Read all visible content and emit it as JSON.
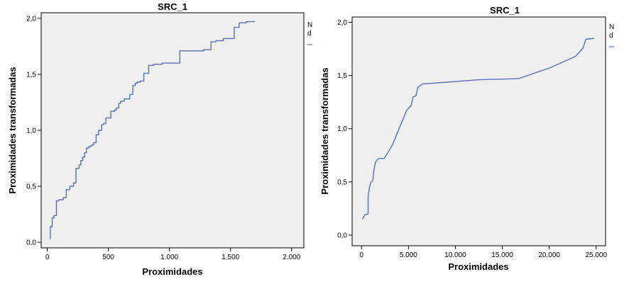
{
  "chart_data": [
    {
      "type": "line",
      "title": "SRC_1",
      "xlabel": "Proximidades",
      "ylabel": "Proximidades transformadas",
      "xlim": [
        -50,
        2100
      ],
      "ylim": [
        -0.05,
        2.05
      ],
      "xticks": [
        0,
        500,
        1000,
        1500,
        2000
      ],
      "xtick_labels": [
        "0",
        "500",
        "1.000",
        "1.500",
        "2.000"
      ],
      "yticks": [
        0.0,
        0.5,
        1.0,
        1.5,
        2.0
      ],
      "ytick_labels": [
        "0,0",
        "0,5",
        "1,0",
        "1,5",
        "2,0"
      ],
      "legend_fragment": [
        "N",
        "d"
      ],
      "line_color": "#5b6fb5",
      "background": "#efefef",
      "series": [
        {
          "x": [
            25,
            25,
            40,
            40,
            55,
            55,
            75,
            75,
            95,
            95,
            130,
            130,
            155,
            155,
            185,
            185,
            215,
            215,
            235,
            235,
            260,
            260,
            275,
            275,
            290,
            290,
            305,
            305,
            320,
            320,
            335,
            335,
            350,
            350,
            365,
            365,
            380,
            380,
            400,
            400,
            420,
            420,
            445,
            445,
            460,
            460,
            480,
            480,
            520,
            520,
            550,
            550,
            565,
            565,
            585,
            585,
            600,
            600,
            630,
            630,
            675,
            675,
            700,
            700,
            720,
            720,
            735,
            735,
            760,
            760,
            790,
            790,
            830,
            830,
            870,
            870,
            940,
            940,
            1085,
            1085,
            1280,
            1280,
            1340,
            1340,
            1380,
            1380,
            1440,
            1440,
            1530,
            1530,
            1570,
            1570,
            1630,
            1630,
            1700
          ],
          "y": [
            0.03,
            0.14,
            0.14,
            0.22,
            0.22,
            0.24,
            0.24,
            0.37,
            0.37,
            0.38,
            0.38,
            0.4,
            0.4,
            0.47,
            0.47,
            0.5,
            0.5,
            0.53,
            0.53,
            0.66,
            0.66,
            0.69,
            0.69,
            0.73,
            0.73,
            0.76,
            0.76,
            0.8,
            0.8,
            0.84,
            0.84,
            0.85,
            0.85,
            0.86,
            0.86,
            0.87,
            0.87,
            0.89,
            0.89,
            0.96,
            0.96,
            1.0,
            1.0,
            1.05,
            1.05,
            1.06,
            1.06,
            1.11,
            1.11,
            1.17,
            1.17,
            1.18,
            1.18,
            1.2,
            1.2,
            1.24,
            1.24,
            1.26,
            1.26,
            1.28,
            1.28,
            1.32,
            1.32,
            1.4,
            1.4,
            1.42,
            1.42,
            1.43,
            1.43,
            1.44,
            1.44,
            1.51,
            1.51,
            1.58,
            1.58,
            1.59,
            1.59,
            1.6,
            1.6,
            1.71,
            1.71,
            1.72,
            1.72,
            1.79,
            1.79,
            1.8,
            1.8,
            1.82,
            1.82,
            1.92,
            1.92,
            1.96,
            1.96,
            1.97,
            1.97
          ]
        }
      ]
    },
    {
      "type": "line",
      "title": "SRC_1",
      "xlabel": "Proximidades",
      "ylabel": "Proximidades transformadas",
      "xlim": [
        -1000,
        26000
      ],
      "ylim": [
        -0.1,
        2.05
      ],
      "xticks": [
        0,
        5000,
        10000,
        15000,
        20000,
        25000
      ],
      "xtick_labels": [
        "0",
        "5.000",
        "10.000",
        "15.000",
        "20.000",
        "25.000"
      ],
      "yticks": [
        0.0,
        0.5,
        1.0,
        1.5,
        2.0
      ],
      "ytick_labels": [
        "0,0",
        "0,5",
        "1,0",
        "1,5",
        "2,0"
      ],
      "legend_fragment": [
        "N",
        "d"
      ],
      "line_color": "#5b6fb5",
      "background": "#efefef",
      "series": [
        {
          "x": [
            100,
            350,
            700,
            700,
            850,
            1000,
            1200,
            1300,
            1500,
            1800,
            2400,
            2700,
            3300,
            4000,
            4800,
            5300,
            5500,
            5800,
            6000,
            6500,
            12500,
            16700,
            20000,
            22800,
            23600,
            23900,
            24800
          ],
          "y": [
            0.15,
            0.19,
            0.2,
            0.36,
            0.45,
            0.5,
            0.51,
            0.6,
            0.69,
            0.72,
            0.72,
            0.76,
            0.85,
            1.0,
            1.17,
            1.22,
            1.3,
            1.31,
            1.39,
            1.42,
            1.46,
            1.47,
            1.57,
            1.68,
            1.76,
            1.84,
            1.85
          ]
        }
      ]
    }
  ]
}
